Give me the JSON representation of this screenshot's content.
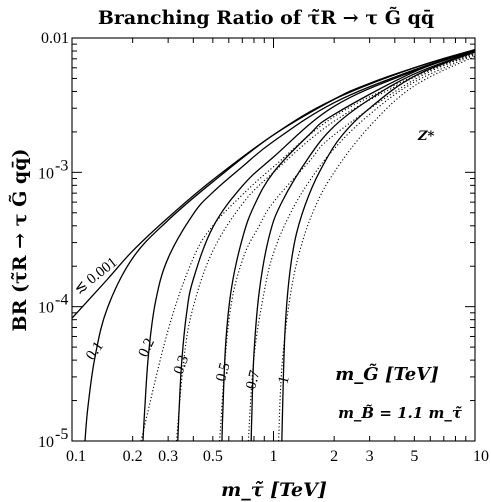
{
  "chart_data": {
    "type": "line",
    "title": "Branching Ratio of τ̃R → τ G̃ qq̄",
    "xlabel": "m_τ̃ [TeV]",
    "ylabel": "BR (τ̃R → τ G̃ qq̄)",
    "x_scale": "log",
    "y_scale": "log",
    "xlim": [
      0.1,
      10
    ],
    "ylim": [
      1e-05,
      0.01
    ],
    "x_ticks": [
      {
        "value": 0.1,
        "label": "0.1"
      },
      {
        "value": 0.2,
        "label": "0.2"
      },
      {
        "value": 0.3,
        "label": "0.3"
      },
      {
        "value": 0.5,
        "label": "0.5"
      },
      {
        "value": 1,
        "label": "1"
      },
      {
        "value": 2,
        "label": "2"
      },
      {
        "value": 3,
        "label": "3"
      },
      {
        "value": 5,
        "label": "5"
      },
      {
        "value": 10,
        "label": "10"
      }
    ],
    "y_ticks": [
      {
        "value": 1e-05,
        "base": "10",
        "exp": "-5"
      },
      {
        "value": 0.0001,
        "base": "10",
        "exp": "-4"
      },
      {
        "value": 0.001,
        "base": "10",
        "exp": "-3"
      },
      {
        "value": 0.01,
        "label": "0.01"
      }
    ],
    "legend_title": "m_G̃ [TeV]",
    "annotation": "m_B̃ = 1.1 m_τ̃",
    "z_label": "Z*",
    "series": [
      {
        "name": "≲ 0.001",
        "style": "solid",
        "x": [
          0.1,
          0.15,
          0.2,
          0.3,
          0.5,
          1,
          2,
          3,
          5,
          10
        ],
        "y": [
          8.2e-05,
          0.00016,
          0.00026,
          0.00046,
          0.00088,
          0.0019,
          0.0035,
          0.0046,
          0.006,
          0.0082
        ]
      },
      {
        "name": "0.1",
        "style": "solid",
        "x": [
          0.116,
          0.12,
          0.13,
          0.15,
          0.2,
          0.3,
          0.5,
          1,
          2,
          5,
          10
        ],
        "y": [
          1e-05,
          1.8e-05,
          4.2e-05,
          9.8e-05,
          0.00023,
          0.00044,
          0.00085,
          0.0019,
          0.0035,
          0.006,
          0.0082
        ]
      },
      {
        "name": "0.2",
        "style": "solid",
        "x": [
          0.225,
          0.23,
          0.24,
          0.26,
          0.3,
          0.4,
          0.5,
          0.7,
          1,
          2,
          5,
          10
        ],
        "y": [
          1e-05,
          1.8e-05,
          4.5e-05,
          0.00011,
          0.00023,
          0.00049,
          0.00071,
          0.0011,
          0.0017,
          0.0033,
          0.0058,
          0.0081
        ]
      },
      {
        "name": "0.3",
        "style": "solid",
        "x": [
          0.335,
          0.34,
          0.35,
          0.37,
          0.4,
          0.5,
          0.7,
          1,
          2,
          5,
          10
        ],
        "y": [
          1e-05,
          1.7e-05,
          3.8e-05,
          8.8e-05,
          0.00016,
          0.00039,
          0.00079,
          0.0013,
          0.0031,
          0.0057,
          0.0081
        ]
      },
      {
        "name": "0.5",
        "style": "solid",
        "x": [
          0.555,
          0.56,
          0.58,
          0.62,
          0.7,
          0.8,
          1,
          1.5,
          2,
          5,
          10
        ],
        "y": [
          1e-05,
          1.6e-05,
          5.5e-05,
          0.00014,
          0.00032,
          0.00056,
          0.001,
          0.0019,
          0.0027,
          0.0056,
          0.008
        ]
      },
      {
        "name": "0.7",
        "style": "solid",
        "x": [
          0.775,
          0.78,
          0.8,
          0.85,
          0.95,
          1.1,
          1.5,
          2,
          3,
          5,
          10
        ],
        "y": [
          1e-05,
          1.5e-05,
          4.5e-05,
          0.00013,
          0.00033,
          0.0006,
          0.0013,
          0.0022,
          0.0035,
          0.0054,
          0.008
        ]
      },
      {
        "name": "1",
        "style": "solid",
        "x": [
          1.1,
          1.11,
          1.14,
          1.2,
          1.3,
          1.5,
          1.8,
          2.2,
          3,
          5,
          10
        ],
        "y": [
          1e-05,
          1.8e-05,
          6.5e-05,
          0.00017,
          0.00035,
          0.00068,
          0.0012,
          0.0019,
          0.003,
          0.0052,
          0.0079
        ]
      },
      {
        "name": "Z* (0.2)",
        "style": "dotted",
        "x": [
          0.22,
          0.3,
          0.4,
          0.5,
          0.7,
          1,
          2,
          5,
          10
        ],
        "y": [
          1e-05,
          6.7e-05,
          0.00023,
          0.0004,
          0.00068,
          0.0011,
          0.0026,
          0.0052,
          0.0078
        ]
      },
      {
        "name": "Z* (0.3)",
        "style": "dotted",
        "x": [
          0.33,
          0.36,
          0.4,
          0.5,
          0.7,
          1,
          2,
          5,
          10
        ],
        "y": [
          1e-05,
          4.2e-05,
          0.0001,
          0.00026,
          0.00058,
          0.001,
          0.0024,
          0.0051,
          0.0077
        ]
      },
      {
        "name": "Z* (0.5)",
        "style": "dotted",
        "x": [
          0.54,
          0.6,
          0.7,
          0.85,
          1,
          1.5,
          2,
          5,
          10
        ],
        "y": [
          1e-05,
          7.8e-05,
          0.00022,
          0.0004,
          0.0006,
          0.0012,
          0.0019,
          0.0049,
          0.0076
        ]
      },
      {
        "name": "Z* (0.7)",
        "style": "dotted",
        "x": [
          0.75,
          0.8,
          0.9,
          1,
          1.2,
          1.5,
          2,
          3,
          5,
          10
        ],
        "y": [
          1e-05,
          4.2e-05,
          0.00013,
          0.00025,
          0.00048,
          0.00085,
          0.0015,
          0.0027,
          0.0047,
          0.0075
        ]
      },
      {
        "name": "Z* (1)",
        "style": "dotted",
        "x": [
          1.06,
          1.1,
          1.2,
          1.35,
          1.6,
          2,
          3,
          5,
          10
        ],
        "y": [
          1e-05,
          3.5e-05,
          0.00011,
          0.00026,
          0.00054,
          0.001,
          0.0022,
          0.0044,
          0.0073
        ]
      }
    ],
    "curve_labels": [
      {
        "text": "≲ 0.001",
        "x": 0.135,
        "y": 0.00016,
        "angle": -38
      },
      {
        "text": "0.1",
        "x": 0.135,
        "y": 4.5e-05,
        "angle": -55
      },
      {
        "text": "0.2",
        "x": 0.245,
        "y": 4.8e-05,
        "angle": -65
      },
      {
        "text": "0.3",
        "x": 0.365,
        "y": 3.6e-05,
        "angle": -70
      },
      {
        "text": "0.5",
        "x": 0.59,
        "y": 3.2e-05,
        "angle": -75
      },
      {
        "text": "0.7",
        "x": 0.83,
        "y": 2.8e-05,
        "angle": -75
      },
      {
        "text": "1",
        "x": 1.18,
        "y": 2.8e-05,
        "angle": -75
      }
    ]
  }
}
